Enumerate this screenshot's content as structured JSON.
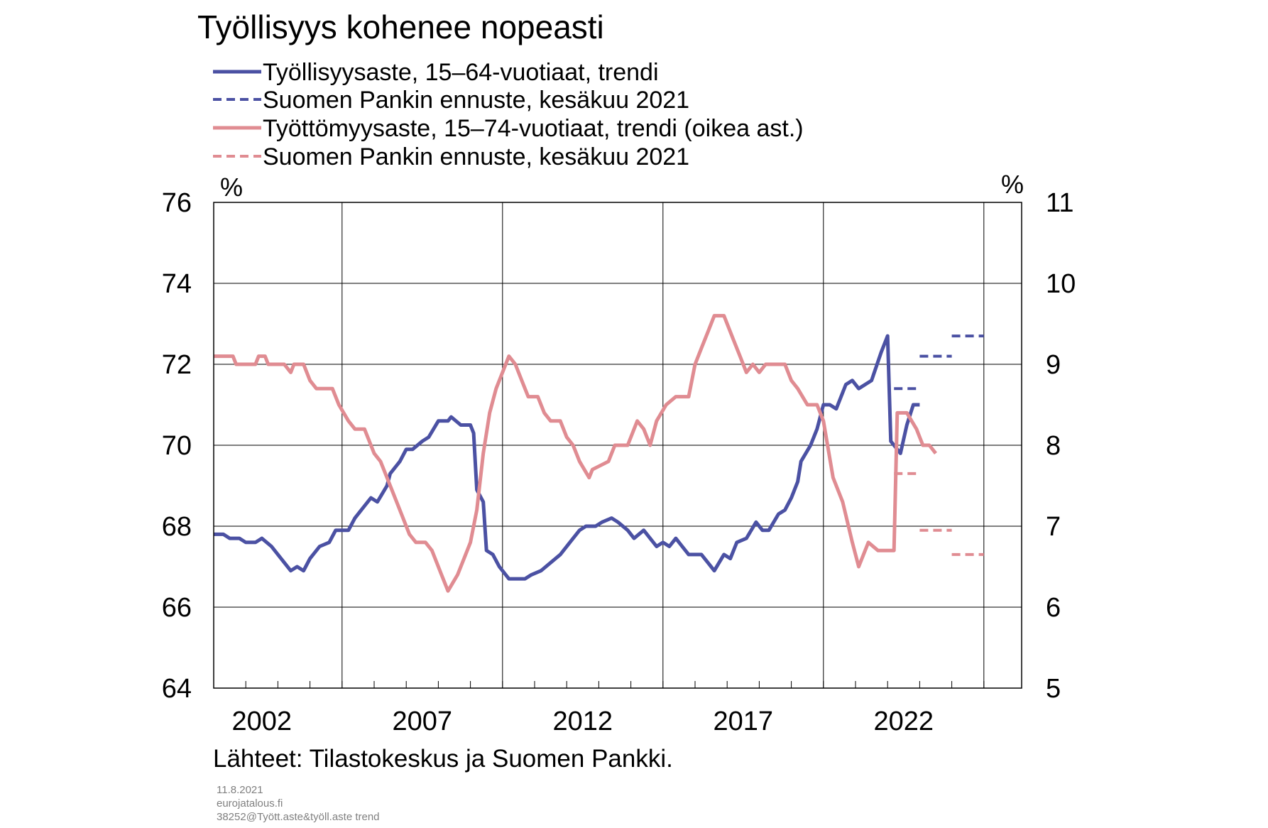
{
  "title": "Työllisyys kohenee nopeasti",
  "legend": [
    {
      "label": "Työllisyysaste, 15–64-vuotiaat, trendi",
      "color": "#4b51a3",
      "style": "solid"
    },
    {
      "label": "Suomen Pankin ennuste, kesäkuu 2021",
      "color": "#4b51a3",
      "style": "dashed"
    },
    {
      "label": "Työttömyysaste, 15–74-vuotiaat, trendi (oikea ast.)",
      "color": "#e08c92",
      "style": "solid"
    },
    {
      "label": "Suomen Pankin ennuste, kesäkuu 2021",
      "color": "#e08c92",
      "style": "dashed"
    }
  ],
  "source": "Lähteet:  Tilastokeskus ja Suomen Pankki.",
  "footer": [
    "11.8.2021",
    "eurojatalous.fi",
    "38252@Tyött.aste&työll.aste  trend"
  ],
  "colors": {
    "employment": "#4b51a3",
    "unemployment": "#e08c92",
    "grid": "#000000"
  },
  "chart_data": {
    "type": "line",
    "title": "Työllisyys kohenee nopeasti",
    "x_range": [
      2001.5,
      2023.5
    ],
    "x_ticks": [
      2002,
      2007,
      2012,
      2017,
      2022
    ],
    "y_left": {
      "unit": "%",
      "range": [
        64,
        76
      ],
      "ticks": [
        64,
        66,
        68,
        70,
        72,
        74,
        76
      ]
    },
    "y_right": {
      "unit": "%",
      "range": [
        5,
        11
      ],
      "ticks": [
        5,
        6,
        7,
        8,
        9,
        10,
        11
      ]
    },
    "grid": true,
    "series": [
      {
        "name": "Työllisyysaste, 15–64-vuotiaat, trendi",
        "axis": "left",
        "style": "solid",
        "points": [
          [
            2001.5,
            67.8
          ],
          [
            2001.8,
            67.8
          ],
          [
            2002.0,
            67.7
          ],
          [
            2002.3,
            67.7
          ],
          [
            2002.5,
            67.6
          ],
          [
            2002.8,
            67.6
          ],
          [
            2003.0,
            67.7
          ],
          [
            2003.3,
            67.5
          ],
          [
            2003.6,
            67.2
          ],
          [
            2003.9,
            66.9
          ],
          [
            2004.1,
            67.0
          ],
          [
            2004.3,
            66.9
          ],
          [
            2004.5,
            67.2
          ],
          [
            2004.8,
            67.5
          ],
          [
            2005.1,
            67.6
          ],
          [
            2005.3,
            67.9
          ],
          [
            2005.7,
            67.9
          ],
          [
            2005.9,
            68.2
          ],
          [
            2006.2,
            68.5
          ],
          [
            2006.4,
            68.7
          ],
          [
            2006.6,
            68.6
          ],
          [
            2006.9,
            69.0
          ],
          [
            2007.0,
            69.3
          ],
          [
            2007.3,
            69.6
          ],
          [
            2007.5,
            69.9
          ],
          [
            2007.7,
            69.9
          ],
          [
            2008.0,
            70.1
          ],
          [
            2008.2,
            70.2
          ],
          [
            2008.5,
            70.6
          ],
          [
            2008.8,
            70.6
          ],
          [
            2008.9,
            70.7
          ],
          [
            2009.2,
            70.5
          ],
          [
            2009.5,
            70.5
          ],
          [
            2009.6,
            70.3
          ],
          [
            2009.7,
            68.9
          ],
          [
            2009.9,
            68.6
          ],
          [
            2010.0,
            67.4
          ],
          [
            2010.2,
            67.3
          ],
          [
            2010.4,
            67.0
          ],
          [
            2010.7,
            66.7
          ],
          [
            2011.2,
            66.7
          ],
          [
            2011.4,
            66.8
          ],
          [
            2011.7,
            66.9
          ],
          [
            2012.0,
            67.1
          ],
          [
            2012.3,
            67.3
          ],
          [
            2012.6,
            67.6
          ],
          [
            2012.9,
            67.9
          ],
          [
            2013.1,
            68.0
          ],
          [
            2013.4,
            68.0
          ],
          [
            2013.6,
            68.1
          ],
          [
            2013.9,
            68.2
          ],
          [
            2014.1,
            68.1
          ],
          [
            2014.4,
            67.9
          ],
          [
            2014.6,
            67.7
          ],
          [
            2014.9,
            67.9
          ],
          [
            2015.1,
            67.7
          ],
          [
            2015.3,
            67.5
          ],
          [
            2015.5,
            67.6
          ],
          [
            2015.7,
            67.5
          ],
          [
            2015.9,
            67.7
          ],
          [
            2016.1,
            67.5
          ],
          [
            2016.3,
            67.3
          ],
          [
            2016.7,
            67.3
          ],
          [
            2016.9,
            67.1
          ],
          [
            2017.1,
            66.9
          ],
          [
            2017.4,
            67.3
          ],
          [
            2017.6,
            67.2
          ],
          [
            2017.8,
            67.6
          ],
          [
            2018.1,
            67.7
          ],
          [
            2018.4,
            68.1
          ],
          [
            2018.6,
            67.9
          ],
          [
            2018.8,
            67.9
          ],
          [
            2019.1,
            68.3
          ],
          [
            2019.3,
            68.4
          ],
          [
            2019.5,
            68.7
          ],
          [
            2019.7,
            69.1
          ],
          [
            2019.8,
            69.6
          ],
          [
            2020.1,
            70.0
          ],
          [
            2020.3,
            70.4
          ],
          [
            2020.5,
            71.0
          ],
          [
            2020.7,
            71.0
          ],
          [
            2020.9,
            70.9
          ],
          [
            2021.2,
            71.5
          ],
          [
            2021.4,
            71.6
          ],
          [
            2021.6,
            71.4
          ],
          [
            2021.8,
            71.5
          ],
          [
            2022.0,
            71.6
          ],
          [
            2022.3,
            72.3
          ],
          [
            2022.5,
            72.7
          ],
          [
            2022.6,
            70.1
          ],
          [
            2022.9,
            69.8
          ],
          [
            2023.1,
            70.5
          ],
          [
            2023.3,
            71.0
          ],
          [
            2023.5,
            71.0
          ]
        ]
      },
      {
        "name": "Työttömyysaste, 15–74-vuotiaat, trendi (oikea ast.)",
        "axis": "right",
        "style": "solid",
        "points": [
          [
            2001.5,
            9.1
          ],
          [
            2002.1,
            9.1
          ],
          [
            2002.2,
            9.0
          ],
          [
            2002.8,
            9.0
          ],
          [
            2002.9,
            9.1
          ],
          [
            2003.1,
            9.1
          ],
          [
            2003.2,
            9.0
          ],
          [
            2003.7,
            9.0
          ],
          [
            2003.9,
            8.9
          ],
          [
            2004.0,
            9.0
          ],
          [
            2004.3,
            9.0
          ],
          [
            2004.5,
            8.8
          ],
          [
            2004.7,
            8.7
          ],
          [
            2005.2,
            8.7
          ],
          [
            2005.4,
            8.5
          ],
          [
            2005.7,
            8.3
          ],
          [
            2005.9,
            8.2
          ],
          [
            2006.2,
            8.2
          ],
          [
            2006.5,
            7.9
          ],
          [
            2006.7,
            7.8
          ],
          [
            2006.9,
            7.6
          ],
          [
            2007.3,
            7.2
          ],
          [
            2007.6,
            6.9
          ],
          [
            2007.8,
            6.8
          ],
          [
            2008.1,
            6.8
          ],
          [
            2008.3,
            6.7
          ],
          [
            2008.6,
            6.4
          ],
          [
            2008.8,
            6.2
          ],
          [
            2009.1,
            6.4
          ],
          [
            2009.3,
            6.6
          ],
          [
            2009.5,
            6.8
          ],
          [
            2009.7,
            7.2
          ],
          [
            2009.9,
            7.9
          ],
          [
            2010.1,
            8.4
          ],
          [
            2010.3,
            8.7
          ],
          [
            2010.5,
            8.9
          ],
          [
            2010.7,
            9.1
          ],
          [
            2010.9,
            9.0
          ],
          [
            2011.1,
            8.8
          ],
          [
            2011.3,
            8.6
          ],
          [
            2011.6,
            8.6
          ],
          [
            2011.8,
            8.4
          ],
          [
            2012.0,
            8.3
          ],
          [
            2012.3,
            8.3
          ],
          [
            2012.5,
            8.1
          ],
          [
            2012.7,
            8.0
          ],
          [
            2012.9,
            7.8
          ],
          [
            2013.2,
            7.6
          ],
          [
            2013.3,
            7.7
          ],
          [
            2013.8,
            7.8
          ],
          [
            2014.0,
            8.0
          ],
          [
            2014.4,
            8.0
          ],
          [
            2014.7,
            8.3
          ],
          [
            2014.9,
            8.2
          ],
          [
            2015.1,
            8.0
          ],
          [
            2015.3,
            8.3
          ],
          [
            2015.6,
            8.5
          ],
          [
            2015.9,
            8.6
          ],
          [
            2016.3,
            8.6
          ],
          [
            2016.5,
            9.0
          ],
          [
            2016.7,
            9.2
          ],
          [
            2016.9,
            9.4
          ],
          [
            2017.1,
            9.6
          ],
          [
            2017.4,
            9.6
          ],
          [
            2017.7,
            9.3
          ],
          [
            2017.9,
            9.1
          ],
          [
            2018.1,
            8.9
          ],
          [
            2018.3,
            9.0
          ],
          [
            2018.5,
            8.9
          ],
          [
            2018.7,
            9.0
          ],
          [
            2019.3,
            9.0
          ],
          [
            2019.5,
            8.8
          ],
          [
            2019.7,
            8.7
          ],
          [
            2020.0,
            8.5
          ],
          [
            2020.3,
            8.5
          ],
          [
            2020.5,
            8.3
          ],
          [
            2020.8,
            7.6
          ],
          [
            2021.1,
            7.3
          ],
          [
            2021.4,
            6.8
          ],
          [
            2021.6,
            6.5
          ],
          [
            2021.9,
            6.8
          ],
          [
            2022.2,
            6.7
          ],
          [
            2022.7,
            6.7
          ],
          [
            2022.8,
            8.4
          ],
          [
            2023.1,
            8.4
          ],
          [
            2023.4,
            8.2
          ],
          [
            2023.6,
            8.0
          ],
          [
            2023.8,
            8.0
          ],
          [
            2024.0,
            7.9
          ]
        ]
      },
      {
        "name": "Suomen Pankin ennuste, kesäkuu 2021",
        "axis": "left",
        "style": "dashed",
        "segments": [
          {
            "x": [
              2022.7,
              2023.5
            ],
            "y": 71.4
          },
          {
            "x": [
              2023.5,
              2024.5
            ],
            "y": 72.2
          },
          {
            "x": [
              2024.5,
              2025.5
            ],
            "y": 72.7
          }
        ]
      },
      {
        "name": "Suomen Pankin ennuste, kesäkuu 2021",
        "axis": "right",
        "style": "dashed",
        "segments": [
          {
            "x": [
              2022.7,
              2023.5
            ],
            "y": 7.65
          },
          {
            "x": [
              2023.5,
              2024.5
            ],
            "y": 6.95
          },
          {
            "x": [
              2024.5,
              2025.5
            ],
            "y": 6.65
          }
        ]
      }
    ]
  }
}
